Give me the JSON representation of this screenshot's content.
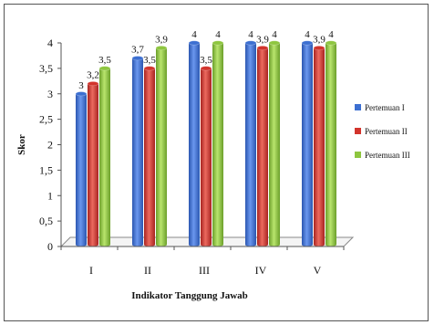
{
  "chart_data": {
    "type": "bar",
    "title": "",
    "xlabel": "Indikator Tanggung Jawab",
    "ylabel": "Skor",
    "ylim": [
      0,
      4
    ],
    "yticks": [
      "0",
      "0,5",
      "1",
      "1,5",
      "2",
      "2,5",
      "3",
      "3,5",
      "4"
    ],
    "yticks_values": [
      0,
      0.5,
      1,
      1.5,
      2,
      2.5,
      3,
      3.5,
      4
    ],
    "categories": [
      "I",
      "II",
      "III",
      "IV",
      "V"
    ],
    "series": [
      {
        "name": "Pertemuan I",
        "values": [
          3,
          3.7,
          4,
          4,
          4
        ],
        "labels": [
          "3",
          "3,7",
          "4",
          "4",
          "4"
        ],
        "color": "#3c6fd1"
      },
      {
        "name": "Pertemuan II",
        "values": [
          3.2,
          3.5,
          3.5,
          3.9,
          3.9
        ],
        "labels": [
          "3,2",
          "3,5",
          "3,5",
          "3,9",
          "3,9"
        ],
        "color": "#d2342c"
      },
      {
        "name": "Pertemuan III",
        "values": [
          3.5,
          3.9,
          4,
          4,
          4
        ],
        "labels": [
          "3,5",
          "3,9",
          "4",
          "4",
          "4"
        ],
        "color": "#8ec63f"
      }
    ],
    "legend_position": "right",
    "grid": false
  }
}
